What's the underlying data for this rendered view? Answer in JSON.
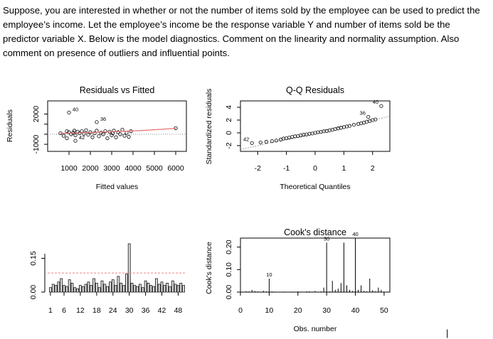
{
  "question": "Suppose, you are interested in whether or not the number of items sold by the employee can be used to predict the employee’s income. Let the employee’s income be the response variable Y and number of items sold be the predictor variable X. Below is the model diagnostics. Comment on the linearity and normality assumption. Also comment on presence of outliers and influential points.",
  "caret": "|",
  "colors": {
    "smooth": "#e8706f",
    "cutoff": "#f08080",
    "reference": "#888888",
    "ink": "#000000"
  },
  "chart_data": [
    {
      "type": "scatter",
      "title": "Residuals vs Fitted",
      "xlabel": "Fitted values",
      "ylabel": "Residuals",
      "xlim": [
        0,
        6500
      ],
      "ylim": [
        -1700,
        3300
      ],
      "xticks": [
        "1000",
        "2000",
        "3000",
        "4000",
        "5000",
        "6000"
      ],
      "yticks": [
        "-1000",
        "0",
        "1000",
        "2000"
      ],
      "yticks_labeled": [
        "-1000",
        "2000"
      ],
      "points": [
        [
          600,
          100
        ],
        [
          750,
          -150
        ],
        [
          900,
          300
        ],
        [
          1000,
          200
        ],
        [
          1100,
          0
        ],
        [
          1200,
          150
        ],
        [
          1250,
          350
        ],
        [
          1300,
          -100
        ],
        [
          1400,
          250
        ],
        [
          1500,
          100
        ],
        [
          1600,
          300
        ],
        [
          1700,
          50
        ],
        [
          1800,
          400
        ],
        [
          1900,
          -50
        ],
        [
          2000,
          200
        ],
        [
          2100,
          -300
        ],
        [
          2200,
          100
        ],
        [
          2300,
          350
        ],
        [
          2400,
          -200
        ],
        [
          2500,
          150
        ],
        [
          2600,
          0
        ],
        [
          2700,
          300
        ],
        [
          2800,
          -400
        ],
        [
          2900,
          250
        ],
        [
          3000,
          -100
        ],
        [
          3050,
          100
        ],
        [
          3100,
          350
        ],
        [
          3200,
          -300
        ],
        [
          3300,
          200
        ],
        [
          3400,
          0
        ],
        [
          3500,
          450
        ],
        [
          3600,
          -150
        ],
        [
          3700,
          150
        ],
        [
          3800,
          -250
        ],
        [
          3900,
          300
        ],
        [
          2300,
          1200
        ],
        [
          1000,
          2150
        ],
        [
          1300,
          -650
        ],
        [
          900,
          -400
        ],
        [
          6000,
          600
        ]
      ],
      "labeled_points": [
        {
          "label": "40",
          "x": 1000,
          "y": 2150
        },
        {
          "label": "36",
          "x": 2300,
          "y": 1200
        },
        {
          "label": "42",
          "x": 1300,
          "y": -650
        }
      ],
      "smooth": [
        [
          600,
          80
        ],
        [
          2500,
          200
        ],
        [
          4500,
          380
        ],
        [
          6000,
          580
        ]
      ]
    },
    {
      "type": "scatter",
      "title": "Q-Q Residuals",
      "xlabel": "Theoretical Quantiles",
      "ylabel": "Standardized residuals",
      "xlim": [
        -2.6,
        2.6
      ],
      "ylim": [
        -2.9,
        5.0
      ],
      "xticks": [
        "-2",
        "-1",
        "0",
        "1",
        "2"
      ],
      "yticks": [
        "-2",
        "0",
        "2",
        "4"
      ],
      "points": [
        [
          -2.2,
          -1.6
        ],
        [
          -1.9,
          -1.5
        ],
        [
          -1.7,
          -1.4
        ],
        [
          -1.5,
          -1.3
        ],
        [
          -1.35,
          -1.2
        ],
        [
          -1.2,
          -1.05
        ],
        [
          -1.1,
          -0.9
        ],
        [
          -1.0,
          -0.85
        ],
        [
          -0.9,
          -0.75
        ],
        [
          -0.8,
          -0.65
        ],
        [
          -0.7,
          -0.55
        ],
        [
          -0.6,
          -0.5
        ],
        [
          -0.5,
          -0.4
        ],
        [
          -0.4,
          -0.3
        ],
        [
          -0.3,
          -0.25
        ],
        [
          -0.2,
          -0.15
        ],
        [
          -0.1,
          -0.1
        ],
        [
          0.0,
          0.0
        ],
        [
          0.1,
          0.1
        ],
        [
          0.2,
          0.15
        ],
        [
          0.3,
          0.25
        ],
        [
          0.4,
          0.3
        ],
        [
          0.5,
          0.4
        ],
        [
          0.6,
          0.5
        ],
        [
          0.7,
          0.6
        ],
        [
          0.8,
          0.7
        ],
        [
          0.9,
          0.8
        ],
        [
          1.0,
          0.9
        ],
        [
          1.1,
          1.0
        ],
        [
          1.2,
          1.1
        ],
        [
          1.35,
          1.25
        ],
        [
          1.5,
          1.4
        ],
        [
          1.6,
          1.5
        ],
        [
          1.7,
          1.6
        ],
        [
          1.8,
          1.75
        ],
        [
          1.9,
          1.85
        ],
        [
          2.0,
          2.0
        ],
        [
          2.1,
          2.1
        ],
        [
          1.85,
          2.5
        ],
        [
          2.3,
          4.2
        ]
      ],
      "labeled_points": [
        {
          "label": "40",
          "x": 2.3,
          "y": 4.2
        },
        {
          "label": "36",
          "x": 1.85,
          "y": 2.5
        },
        {
          "label": "42",
          "x": -2.2,
          "y": -1.6
        }
      ],
      "reference_line": [
        [
          -2.6,
          -2.6
        ],
        [
          2.6,
          2.6
        ]
      ]
    },
    {
      "type": "bar",
      "title": "",
      "xlabel": "",
      "ylabel": "",
      "ylim": [
        0,
        0.24
      ],
      "xticks": [
        "1",
        "6",
        "12",
        "18",
        "24",
        "30",
        "36",
        "42",
        "48"
      ],
      "x_tick_values": [
        1,
        6,
        12,
        18,
        24,
        30,
        36,
        42,
        48
      ],
      "yticks": [
        "0.00",
        "0.15"
      ],
      "cutoff": 0.085,
      "values": [
        0.02,
        0.035,
        0.03,
        0.045,
        0.06,
        0.03,
        0.025,
        0.055,
        0.04,
        0.02,
        0.015,
        0.03,
        0.025,
        0.035,
        0.045,
        0.03,
        0.06,
        0.04,
        0.02,
        0.05,
        0.035,
        0.025,
        0.045,
        0.055,
        0.03,
        0.07,
        0.04,
        0.03,
        0.08,
        0.215,
        0.04,
        0.03,
        0.025,
        0.035,
        0.02,
        0.05,
        0.04,
        0.03,
        0.025,
        0.06,
        0.035,
        0.045,
        0.03,
        0.04,
        0.025,
        0.05,
        0.035,
        0.03,
        0.04,
        0.03
      ]
    },
    {
      "type": "bar",
      "title": "Cook's distance",
      "xlabel": "Obs. number",
      "ylabel": "Cook's distance",
      "xlim": [
        0,
        52
      ],
      "ylim": [
        0,
        0.24
      ],
      "xticks": [
        "0",
        "10",
        "20",
        "30",
        "40",
        "50"
      ],
      "yticks": [
        "0.00",
        "0.10",
        "0.20"
      ],
      "values": [
        0.002,
        0.004,
        0.003,
        0.01,
        0.005,
        0.003,
        0.002,
        0.006,
        0.003,
        0.06,
        0.003,
        0.002,
        0.001,
        0.001,
        0.002,
        0.001,
        0.001,
        0.002,
        0.001,
        0.003,
        0.002,
        0.001,
        0.003,
        0.004,
        0.002,
        0.005,
        0.002,
        0.003,
        0.02,
        0.22,
        0.003,
        0.05,
        0.01,
        0.015,
        0.04,
        0.22,
        0.03,
        0.01,
        0.005,
        0.24,
        0.01,
        0.03,
        0.005,
        0.003,
        0.06,
        0.008,
        0.004,
        0.02,
        0.01,
        0.002
      ],
      "labeled_points": [
        {
          "label": "10",
          "x": 10,
          "y": 0.06
        },
        {
          "label": "30",
          "x": 30,
          "y": 0.22
        },
        {
          "label": "40",
          "x": 40,
          "y": 0.24
        }
      ]
    }
  ]
}
